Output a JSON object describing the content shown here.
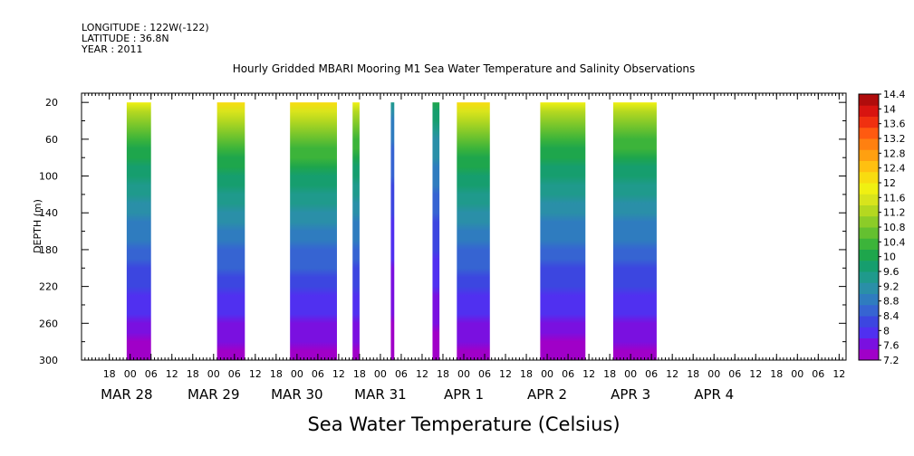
{
  "header": {
    "longitude": "LONGITUDE : 122W(-122)",
    "latitude": "LATITUDE : 36.8N",
    "year": "YEAR : 2011"
  },
  "chart_data": {
    "type": "heatmap",
    "title": "Hourly Gridded MBARI Mooring M1 Sea Water Temperature and Salinity Observations",
    "xlabel": "Sea Water Temperature (Celsius)",
    "ylabel": "DEPTH (m)",
    "x_unit": "hours since 2011-03-28 00:00",
    "x_range_hours": [
      -14,
      206
    ],
    "ylim": [
      300,
      10
    ],
    "y_ticks": [
      20,
      60,
      100,
      140,
      180,
      220,
      260,
      300
    ],
    "x_hour_ticks": [
      {
        "h": -6,
        "label": "18"
      },
      {
        "h": 0,
        "label": "00"
      },
      {
        "h": 6,
        "label": "06"
      },
      {
        "h": 12,
        "label": "12"
      },
      {
        "h": 18,
        "label": "18"
      },
      {
        "h": 24,
        "label": "00"
      },
      {
        "h": 30,
        "label": "06"
      },
      {
        "h": 36,
        "label": "12"
      },
      {
        "h": 42,
        "label": "18"
      },
      {
        "h": 48,
        "label": "00"
      },
      {
        "h": 54,
        "label": "06"
      },
      {
        "h": 60,
        "label": "12"
      },
      {
        "h": 66,
        "label": "18"
      },
      {
        "h": 72,
        "label": "00"
      },
      {
        "h": 78,
        "label": "06"
      },
      {
        "h": 84,
        "label": "12"
      },
      {
        "h": 90,
        "label": "18"
      },
      {
        "h": 96,
        "label": "00"
      },
      {
        "h": 102,
        "label": "06"
      },
      {
        "h": 108,
        "label": "12"
      },
      {
        "h": 114,
        "label": "18"
      },
      {
        "h": 120,
        "label": "00"
      },
      {
        "h": 126,
        "label": "06"
      },
      {
        "h": 132,
        "label": "12"
      },
      {
        "h": 138,
        "label": "18"
      },
      {
        "h": 144,
        "label": "00"
      },
      {
        "h": 150,
        "label": "06"
      },
      {
        "h": 156,
        "label": "12"
      },
      {
        "h": 162,
        "label": "18"
      },
      {
        "h": 168,
        "label": "00"
      },
      {
        "h": 174,
        "label": "06"
      },
      {
        "h": 180,
        "label": "12"
      },
      {
        "h": 186,
        "label": "18"
      },
      {
        "h": 192,
        "label": "00"
      },
      {
        "h": 198,
        "label": "06"
      },
      {
        "h": 204,
        "label": "12"
      }
    ],
    "x_date_labels": [
      {
        "h": -1,
        "label": "MAR 28"
      },
      {
        "h": 24,
        "label": "MAR 29"
      },
      {
        "h": 48,
        "label": "MAR 30"
      },
      {
        "h": 72,
        "label": "MAR 31"
      },
      {
        "h": 96,
        "label": "APR  1"
      },
      {
        "h": 120,
        "label": "APR  2"
      },
      {
        "h": 144,
        "label": "APR  3"
      },
      {
        "h": 168,
        "label": "APR  4"
      }
    ],
    "data_blocks": [
      {
        "start": -1,
        "end": 6,
        "surface_temp": 11.8
      },
      {
        "start": 25,
        "end": 33,
        "surface_temp": 12.1
      },
      {
        "start": 46,
        "end": 59.5,
        "surface_temp": 12.2
      },
      {
        "start": 64,
        "end": 66,
        "surface_temp": 11.9
      },
      {
        "start": 75,
        "end": 76,
        "surface_temp": 9.4
      },
      {
        "start": 87,
        "end": 89,
        "surface_temp": 10.2
      },
      {
        "start": 94,
        "end": 103.5,
        "surface_temp": 12.1
      },
      {
        "start": 118,
        "end": 131,
        "surface_temp": 11.8
      },
      {
        "start": 139,
        "end": 151.5,
        "surface_temp": 11.9
      }
    ],
    "bottom_temp": 7.3,
    "colorbar": {
      "min": 7.2,
      "max": 14.4,
      "labels": [
        "14.4",
        "14",
        "13.6",
        "13.2",
        "12.8",
        "12.4",
        "12",
        "11.6",
        "11.2",
        "10.8",
        "10.4",
        "10",
        "9.6",
        "9.2",
        "8.8",
        "8.4",
        "8",
        "7.6",
        "7.2"
      ],
      "colors": [
        "#a000c8",
        "#7a10e0",
        "#5030f0",
        "#3c46e0",
        "#3664d2",
        "#2f7cbf",
        "#2a8fa8",
        "#1f9a8c",
        "#169e6e",
        "#1ea64c",
        "#3cb43a",
        "#64c030",
        "#8ccc28",
        "#b4d820",
        "#d8e41c",
        "#f0f012",
        "#f8dc10",
        "#ffc010",
        "#ffa010",
        "#ff8010",
        "#ff5a10",
        "#f03010",
        "#d81410",
        "#b00c0c"
      ]
    }
  }
}
